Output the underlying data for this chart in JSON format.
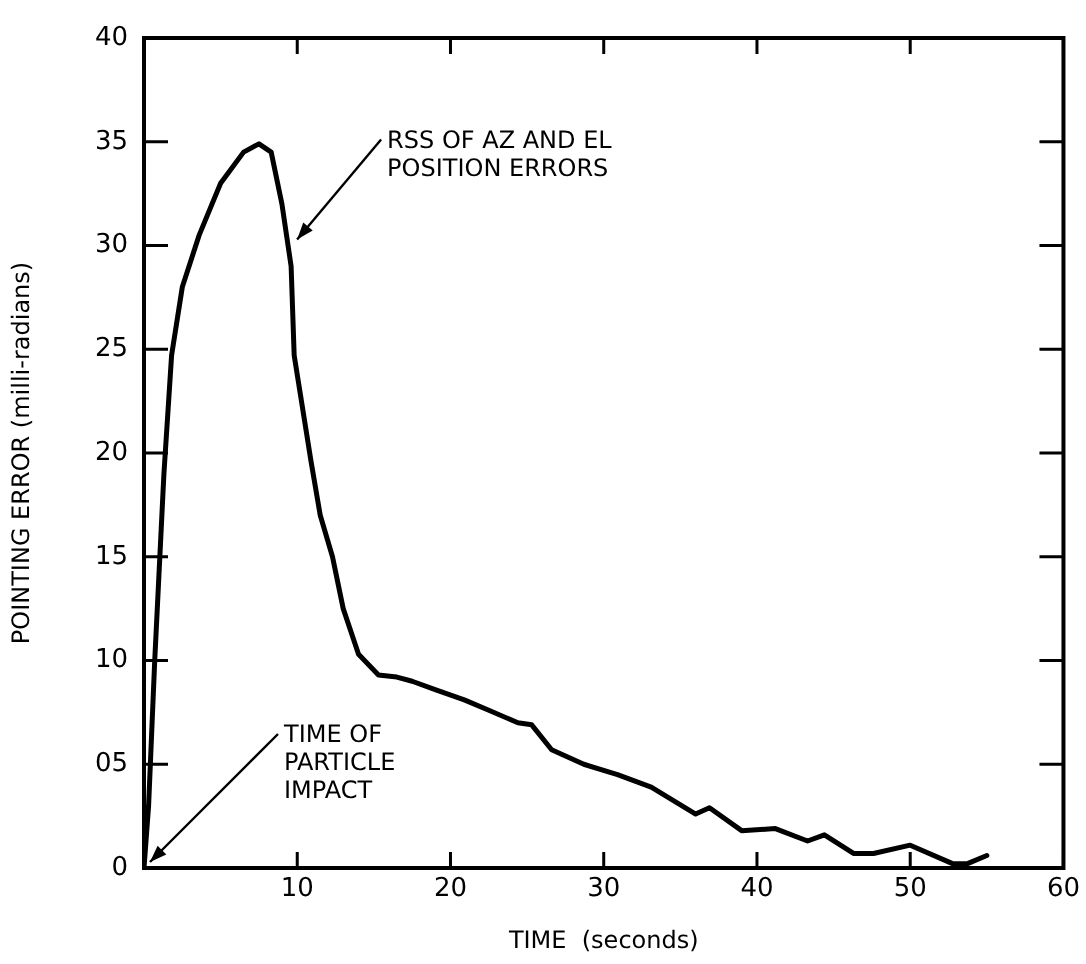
{
  "chart_data": {
    "type": "line",
    "xlabel": "TIME  (seconds)",
    "ylabel": "POINTING ERROR (milli-radians)",
    "xlim": [
      0,
      60
    ],
    "xticks": [
      {
        "value": 0,
        "label": null
      },
      10,
      20,
      30,
      40,
      50,
      60
    ],
    "ylim": [
      0,
      40
    ],
    "yticks": [
      0,
      {
        "value": 5,
        "label": "05"
      },
      10,
      15,
      20,
      25,
      30,
      35,
      40
    ],
    "grid": false,
    "legend": false,
    "marker": "none",
    "line_style": "solid",
    "series": [
      {
        "color": "#000000",
        "x": [
          0,
          0.3,
          0.7,
          1.3,
          1.8,
          2.5,
          3.6,
          5,
          6.5,
          7.5,
          8.3,
          9,
          9.6,
          9.8,
          10.9,
          11.5,
          12.3,
          13,
          14,
          15.3,
          16.5,
          17.5,
          19,
          20.9,
          22.5,
          24.4,
          25.3,
          26.6,
          28.7,
          30.9,
          33.1,
          36,
          36.9,
          39,
          41.2,
          43.3,
          44.4,
          46.3,
          47.6,
          50,
          52.8,
          53.7,
          55
        ],
        "values": [
          0,
          3,
          10,
          19,
          24.7,
          28,
          30.5,
          33,
          34.5,
          34.9,
          34.5,
          32,
          29,
          24.7,
          19.6,
          17,
          15,
          12.5,
          10.3,
          9.3,
          9.2,
          9,
          8.6,
          8.1,
          7.6,
          7,
          6.9,
          5.7,
          5,
          4.5,
          3.9,
          2.6,
          2.9,
          1.8,
          1.9,
          1.3,
          1.6,
          0.7,
          0.7,
          1.1,
          0.2,
          0.2,
          0.6
        ]
      }
    ],
    "annotations": [
      {
        "text": "RSS OF AZ AND EL\nPOSITION ERRORS",
        "x": 9.6,
        "y": 30
      },
      {
        "text": "TIME OF\nPARTICLE\nIMPACT",
        "x": 0,
        "y": 0
      }
    ]
  }
}
